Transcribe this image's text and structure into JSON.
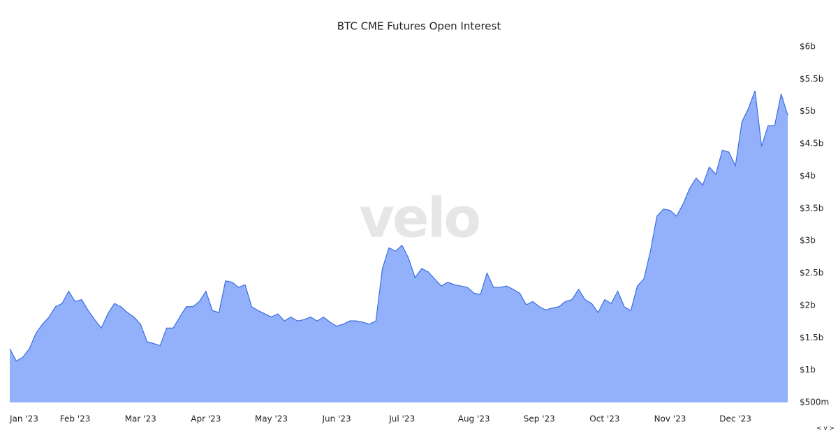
{
  "chart_data": {
    "type": "area",
    "title": "BTC CME Futures Open Interest",
    "watermark": "velo",
    "corner_label": "< v >",
    "categories": [
      "Jan '23",
      null,
      null,
      null,
      null,
      null,
      null,
      null,
      null,
      null,
      "Feb '23",
      null,
      null,
      null,
      null,
      null,
      null,
      null,
      null,
      null,
      "Mar '23",
      null,
      null,
      null,
      null,
      null,
      null,
      null,
      null,
      null,
      "Apr '23",
      null,
      null,
      null,
      null,
      null,
      null,
      null,
      null,
      null,
      "May '23",
      null,
      null,
      null,
      null,
      null,
      null,
      null,
      null,
      null,
      "Jun '23",
      null,
      null,
      null,
      null,
      null,
      null,
      null,
      null,
      null,
      "Jul '23",
      null,
      null,
      null,
      null,
      null,
      null,
      null,
      null,
      null,
      null,
      "Aug '23",
      null,
      null,
      null,
      null,
      null,
      null,
      null,
      null,
      null,
      "Sep '23",
      null,
      null,
      null,
      null,
      null,
      null,
      null,
      null,
      null,
      "Oct '23",
      null,
      null,
      null,
      null,
      null,
      null,
      null,
      null,
      null,
      "Nov '23",
      null,
      null,
      null,
      null,
      null,
      null,
      null,
      null,
      null,
      "Dec '23",
      null,
      null,
      null,
      null,
      null,
      null,
      null,
      null
    ],
    "values": [
      1.33,
      1.14,
      1.2,
      1.33,
      1.57,
      1.71,
      1.82,
      1.98,
      2.03,
      2.22,
      2.06,
      2.09,
      1.92,
      1.78,
      1.65,
      1.87,
      2.03,
      1.98,
      1.89,
      1.82,
      1.71,
      1.44,
      1.41,
      1.38,
      1.65,
      1.65,
      1.82,
      1.98,
      1.98,
      2.06,
      2.22,
      1.92,
      1.89,
      2.38,
      2.36,
      2.28,
      2.32,
      1.98,
      1.92,
      1.87,
      1.82,
      1.87,
      1.76,
      1.82,
      1.76,
      1.78,
      1.82,
      1.76,
      1.82,
      1.74,
      1.68,
      1.71,
      1.76,
      1.76,
      1.74,
      1.71,
      1.76,
      2.57,
      2.89,
      2.84,
      2.93,
      2.73,
      2.43,
      2.57,
      2.52,
      2.41,
      2.3,
      2.36,
      2.32,
      2.3,
      2.28,
      2.19,
      2.17,
      2.5,
      2.28,
      2.28,
      2.3,
      2.25,
      2.19,
      2.01,
      2.06,
      1.98,
      1.93,
      1.96,
      1.98,
      2.06,
      2.09,
      2.25,
      2.09,
      2.03,
      1.89,
      2.09,
      2.03,
      2.22,
      1.98,
      1.92,
      2.3,
      2.41,
      2.84,
      3.38,
      3.49,
      3.47,
      3.38,
      3.57,
      3.81,
      3.97,
      3.86,
      4.14,
      4.03,
      4.4,
      4.37,
      4.16,
      4.84,
      5.05,
      5.32,
      4.46,
      4.78,
      4.78,
      5.27,
      4.94
    ],
    "color": "#93b0fb",
    "line_color": "#3b6ee0",
    "ylim": [
      0.5,
      6
    ],
    "yticks": [
      {
        "value": 0.5,
        "label": "$500m"
      },
      {
        "value": 1,
        "label": "$1b"
      },
      {
        "value": 1.5,
        "label": "$1.5b"
      },
      {
        "value": 2,
        "label": "$2b"
      },
      {
        "value": 2.5,
        "label": "$2.5b"
      },
      {
        "value": 3,
        "label": "$3b"
      },
      {
        "value": 3.5,
        "label": "$3.5b"
      },
      {
        "value": 4,
        "label": "$4b"
      },
      {
        "value": 4.5,
        "label": "$4.5b"
      },
      {
        "value": 5,
        "label": "$5b"
      },
      {
        "value": 5.5,
        "label": "$5.5b"
      },
      {
        "value": 6,
        "label": "$6b"
      }
    ],
    "grid": false
  }
}
